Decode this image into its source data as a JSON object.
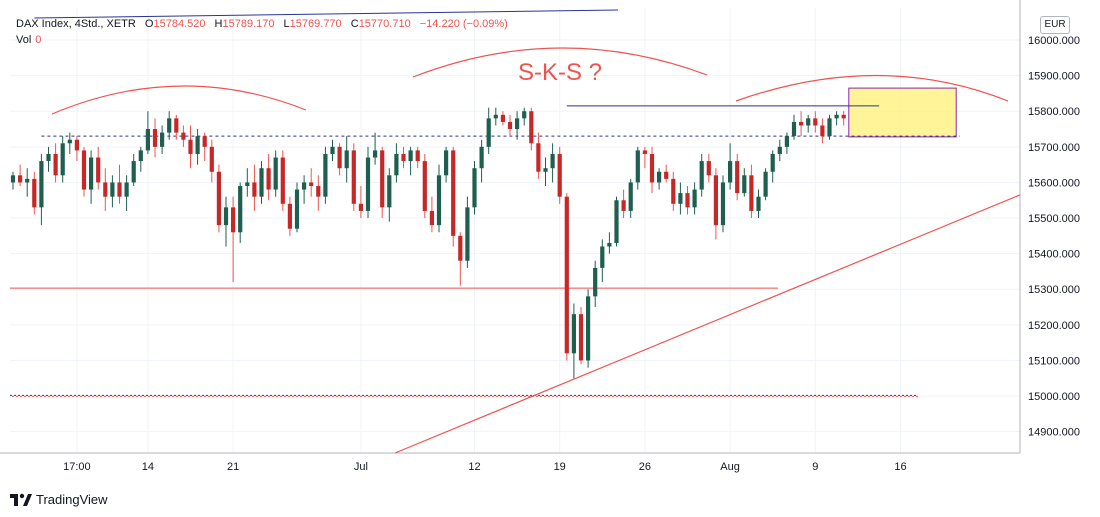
{
  "legend": {
    "symbol": "DAX Index, 4Std., XETR",
    "open_label": "O",
    "open_value": "15784.520",
    "high_label": "H",
    "high_value": "15789.170",
    "low_label": "L",
    "low_value": "15769.770",
    "close_label": "C",
    "close_value": "15770.710",
    "change": "−14.220 (−0.09%)",
    "volume_label": "Vol",
    "volume_value": "0"
  },
  "currency": "EUR",
  "branding": "TradingView",
  "colors": {
    "up": "#26a69a",
    "up_body": "#1e5f4f",
    "down": "#ef5350",
    "down_body": "#c62828",
    "drawing": "#ef5350",
    "navy": "#283593",
    "highlight": "#fff176"
  },
  "chart_data": {
    "type": "candlestick",
    "title": "DAX Index, 4Std., XETR",
    "ylim": [
      14840,
      16090
    ],
    "y_ticks": [
      "16000.000",
      "15900.000",
      "15800.000",
      "15700.000",
      "15600.000",
      "15500.000",
      "15400.000",
      "15300.000",
      "15200.000",
      "15100.000",
      "15000.000",
      "14900.000"
    ],
    "x_ticks": [
      {
        "label": "17:00",
        "idx": 9
      },
      {
        "label": "14",
        "idx": 19
      },
      {
        "label": "21",
        "idx": 31
      },
      {
        "label": "Jul",
        "idx": 49
      },
      {
        "label": "12",
        "idx": 65
      },
      {
        "label": "19",
        "idx": 77
      },
      {
        "label": "26",
        "idx": 89
      },
      {
        "label": "Aug",
        "idx": 101
      },
      {
        "label": "9",
        "idx": 113
      },
      {
        "label": "16",
        "idx": 125
      }
    ],
    "candles": [
      [
        15600,
        15630,
        15580,
        15620
      ],
      [
        15620,
        15650,
        15590,
        15600
      ],
      [
        15600,
        15640,
        15560,
        15610
      ],
      [
        15610,
        15630,
        15510,
        15530
      ],
      [
        15530,
        15680,
        15480,
        15660
      ],
      [
        15660,
        15700,
        15630,
        15680
      ],
      [
        15680,
        15710,
        15600,
        15620
      ],
      [
        15620,
        15730,
        15600,
        15710
      ],
      [
        15710,
        15740,
        15680,
        15720
      ],
      [
        15720,
        15730,
        15660,
        15690
      ],
      [
        15690,
        15700,
        15560,
        15580
      ],
      [
        15580,
        15690,
        15540,
        15670
      ],
      [
        15670,
        15700,
        15580,
        15600
      ],
      [
        15600,
        15640,
        15520,
        15560
      ],
      [
        15560,
        15620,
        15530,
        15600
      ],
      [
        15600,
        15650,
        15540,
        15560
      ],
      [
        15560,
        15620,
        15520,
        15600
      ],
      [
        15600,
        15680,
        15590,
        15660
      ],
      [
        15660,
        15700,
        15630,
        15690
      ],
      [
        15690,
        15800,
        15680,
        15750
      ],
      [
        15750,
        15780,
        15670,
        15700
      ],
      [
        15700,
        15760,
        15680,
        15740
      ],
      [
        15740,
        15800,
        15720,
        15780
      ],
      [
        15780,
        15790,
        15720,
        15740
      ],
      [
        15740,
        15760,
        15700,
        15720
      ],
      [
        15720,
        15760,
        15640,
        15680
      ],
      [
        15680,
        15750,
        15650,
        15730
      ],
      [
        15730,
        15740,
        15660,
        15700
      ],
      [
        15700,
        15720,
        15600,
        15630
      ],
      [
        15630,
        15650,
        15460,
        15480
      ],
      [
        15480,
        15560,
        15420,
        15530
      ],
      [
        15530,
        15560,
        15320,
        15460
      ],
      [
        15460,
        15600,
        15430,
        15590
      ],
      [
        15590,
        15640,
        15560,
        15600
      ],
      [
        15600,
        15650,
        15520,
        15560
      ],
      [
        15560,
        15660,
        15540,
        15640
      ],
      [
        15640,
        15680,
        15550,
        15580
      ],
      [
        15580,
        15690,
        15560,
        15670
      ],
      [
        15670,
        15690,
        15520,
        15540
      ],
      [
        15540,
        15560,
        15450,
        15470
      ],
      [
        15470,
        15600,
        15460,
        15580
      ],
      [
        15580,
        15620,
        15540,
        15600
      ],
      [
        15600,
        15640,
        15560,
        15590
      ],
      [
        15590,
        15620,
        15520,
        15560
      ],
      [
        15560,
        15700,
        15540,
        15680
      ],
      [
        15680,
        15720,
        15660,
        15700
      ],
      [
        15700,
        15710,
        15620,
        15640
      ],
      [
        15640,
        15730,
        15600,
        15690
      ],
      [
        15690,
        15710,
        15520,
        15540
      ],
      [
        15540,
        15590,
        15500,
        15520
      ],
      [
        15520,
        15700,
        15500,
        15670
      ],
      [
        15670,
        15740,
        15650,
        15690
      ],
      [
        15690,
        15700,
        15500,
        15530
      ],
      [
        15530,
        15640,
        15490,
        15620
      ],
      [
        15620,
        15710,
        15600,
        15680
      ],
      [
        15680,
        15700,
        15640,
        15660
      ],
      [
        15660,
        15700,
        15620,
        15690
      ],
      [
        15690,
        15700,
        15640,
        15660
      ],
      [
        15660,
        15680,
        15500,
        15520
      ],
      [
        15520,
        15560,
        15460,
        15480
      ],
      [
        15480,
        15650,
        15460,
        15620
      ],
      [
        15620,
        15700,
        15600,
        15690
      ],
      [
        15690,
        15700,
        15420,
        15450
      ],
      [
        15450,
        15460,
        15310,
        15380
      ],
      [
        15380,
        15560,
        15360,
        15530
      ],
      [
        15530,
        15660,
        15510,
        15640
      ],
      [
        15640,
        15720,
        15600,
        15700
      ],
      [
        15700,
        15810,
        15680,
        15780
      ],
      [
        15780,
        15810,
        15760,
        15790
      ],
      [
        15790,
        15800,
        15760,
        15770
      ],
      [
        15770,
        15790,
        15730,
        15750
      ],
      [
        15750,
        15800,
        15720,
        15780
      ],
      [
        15780,
        15810,
        15760,
        15800
      ],
      [
        15800,
        15810,
        15690,
        15710
      ],
      [
        15710,
        15740,
        15610,
        15630
      ],
      [
        15630,
        15670,
        15590,
        15640
      ],
      [
        15640,
        15710,
        15600,
        15680
      ],
      [
        15680,
        15700,
        15540,
        15560
      ],
      [
        15560,
        15570,
        15100,
        15120
      ],
      [
        15120,
        15260,
        15050,
        15230
      ],
      [
        15230,
        15250,
        15090,
        15100
      ],
      [
        15100,
        15300,
        15080,
        15280
      ],
      [
        15280,
        15380,
        15250,
        15360
      ],
      [
        15360,
        15440,
        15320,
        15420
      ],
      [
        15420,
        15460,
        15400,
        15430
      ],
      [
        15430,
        15560,
        15420,
        15550
      ],
      [
        15550,
        15580,
        15500,
        15520
      ],
      [
        15520,
        15610,
        15500,
        15600
      ],
      [
        15600,
        15700,
        15580,
        15690
      ],
      [
        15690,
        15700,
        15640,
        15680
      ],
      [
        15680,
        15700,
        15570,
        15600
      ],
      [
        15600,
        15640,
        15580,
        15630
      ],
      [
        15630,
        15650,
        15600,
        15610
      ],
      [
        15610,
        15630,
        15520,
        15540
      ],
      [
        15540,
        15600,
        15510,
        15570
      ],
      [
        15570,
        15590,
        15510,
        15530
      ],
      [
        15530,
        15600,
        15510,
        15580
      ],
      [
        15580,
        15680,
        15560,
        15660
      ],
      [
        15660,
        15680,
        15600,
        15620
      ],
      [
        15620,
        15640,
        15440,
        15480
      ],
      [
        15480,
        15620,
        15460,
        15600
      ],
      [
        15600,
        15710,
        15580,
        15660
      ],
      [
        15660,
        15680,
        15550,
        15570
      ],
      [
        15570,
        15640,
        15560,
        15620
      ],
      [
        15620,
        15650,
        15500,
        15520
      ],
      [
        15520,
        15580,
        15500,
        15560
      ],
      [
        15560,
        15640,
        15550,
        15630
      ],
      [
        15630,
        15690,
        15600,
        15680
      ],
      [
        15680,
        15720,
        15660,
        15700
      ],
      [
        15700,
        15740,
        15680,
        15730
      ],
      [
        15730,
        15790,
        15720,
        15770
      ],
      [
        15770,
        15800,
        15730,
        15760
      ],
      [
        15760,
        15790,
        15740,
        15780
      ],
      [
        15780,
        15800,
        15740,
        15760
      ],
      [
        15760,
        15780,
        15710,
        15730
      ],
      [
        15730,
        15790,
        15720,
        15780
      ],
      [
        15780,
        15800,
        15760,
        15790
      ],
      [
        15790,
        15800,
        15760,
        15780
      ]
    ]
  }
}
